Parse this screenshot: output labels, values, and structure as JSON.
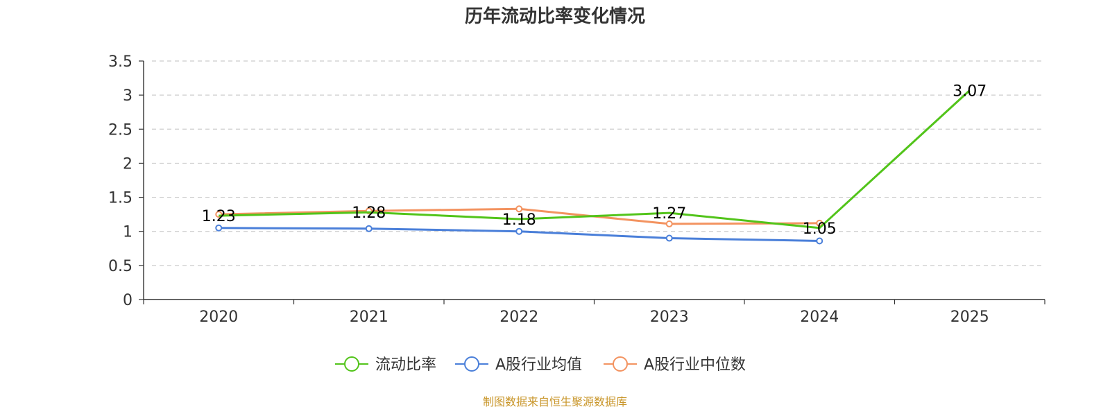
{
  "chart_data": {
    "type": "line",
    "title": "历年流动比率变化情况",
    "categories": [
      "2020",
      "2021",
      "2022",
      "2023",
      "2024",
      "2025"
    ],
    "ylim": [
      0,
      3.5
    ],
    "yticks": [
      "0",
      "0.5",
      "1",
      "1.5",
      "2",
      "2.5",
      "3",
      "3.5"
    ],
    "grid": true,
    "legend_position": "bottom",
    "series": [
      {
        "name": "流动比率",
        "color": "#52c41a",
        "values": [
          1.23,
          1.28,
          1.18,
          1.27,
          1.05,
          3.07
        ],
        "labels": [
          "1.23",
          "1.28",
          "1.18",
          "1.27",
          "1.05",
          "3.07"
        ]
      },
      {
        "name": "A股行业均值",
        "color": "#4a7fd9",
        "values": [
          1.05,
          1.04,
          1.0,
          0.9,
          0.86,
          null
        ]
      },
      {
        "name": "A股行业中位数",
        "color": "#f39360",
        "values": [
          1.25,
          1.3,
          1.33,
          1.11,
          1.12,
          null
        ]
      }
    ]
  },
  "source": "制图数据来自恒生聚源数据库"
}
